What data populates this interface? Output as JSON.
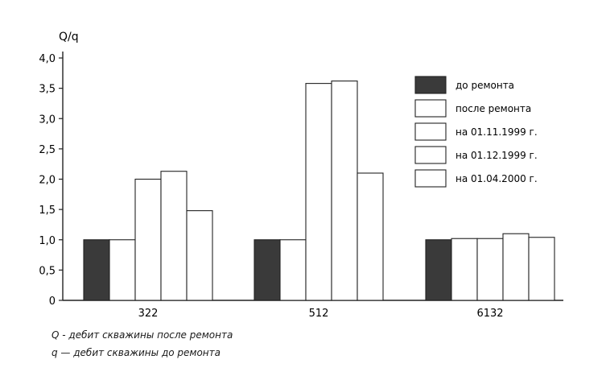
{
  "chart_data": {
    "type": "bar",
    "ylabel": "Q/q",
    "ylim": [
      0,
      4.0
    ],
    "yticks": [
      "0",
      "0,5",
      "1,0",
      "1,5",
      "2,0",
      "2,5",
      "3,0",
      "3,5",
      "4,0"
    ],
    "categories": [
      "322",
      "512",
      "6132"
    ],
    "series": [
      {
        "name": "до ремонта",
        "color": "#3a3a3a",
        "values": [
          1.0,
          1.0,
          1.0
        ]
      },
      {
        "name": "после ремонта",
        "color": "#ffffff",
        "values": [
          1.0,
          1.0,
          1.02
        ]
      },
      {
        "name": "на 01.11.1999 г.",
        "color": "#ffffff",
        "values": [
          2.0,
          3.58,
          1.02
        ]
      },
      {
        "name": "на 01.12.1999 г.",
        "color": "#ffffff",
        "values": [
          2.13,
          3.62,
          1.1
        ]
      },
      {
        "name": "на 01.04.2000 г.",
        "color": "#ffffff",
        "values": [
          1.48,
          2.1,
          1.04
        ]
      }
    ],
    "grid": false,
    "legend_position": "top-right"
  },
  "footnotes": {
    "q_big": "Q - дебит скважины после ремонта",
    "q_small": "q — дебит скважины до ремонта"
  }
}
